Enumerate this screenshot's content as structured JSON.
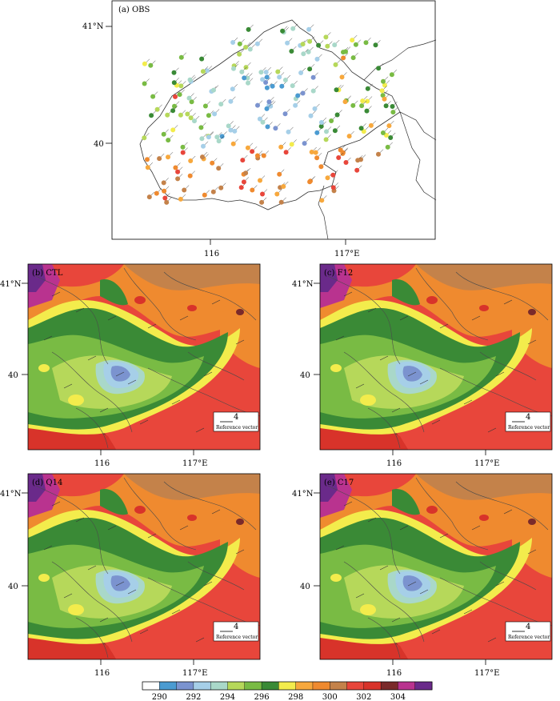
{
  "colors": {
    "bins": [
      "#ffffff",
      "#4b9bd1",
      "#7b93cf",
      "#a6cfe8",
      "#a9d8c9",
      "#b6d85a",
      "#79bb44",
      "#3a8a36",
      "#f3ec4c",
      "#f7a83d",
      "#ef8a2f",
      "#c4824a",
      "#e8463b",
      "#d8332a",
      "#7a2a2a",
      "#b9338f",
      "#6a2a8a"
    ]
  },
  "colorbar": {
    "labels": [
      "290",
      "292",
      "294",
      "296",
      "298",
      "300",
      "302",
      "304"
    ]
  },
  "panels": {
    "obs": {
      "label": "(a) OBS",
      "lat_top": "41°N",
      "lat_mid": "40",
      "lon_left": "116",
      "lon_right": "117°E"
    },
    "ctl": {
      "label": "(b) CTL",
      "lat_top": "41°N",
      "lat_mid": "40",
      "lon_left": "116",
      "lon_right": "117°E",
      "ref_value": "4",
      "ref_label": "Reference vector"
    },
    "f12": {
      "label": "(c) F12",
      "lat_top": "41°N",
      "lat_mid": "40",
      "lon_left": "116",
      "lon_right": "117°E",
      "ref_value": "4",
      "ref_label": "Reference vector"
    },
    "q14": {
      "label": "(d) Q14",
      "lat_top": "41°N",
      "lat_mid": "40",
      "lon_left": "116",
      "lon_right": "117°E",
      "ref_value": "4",
      "ref_label": "Reference vector"
    },
    "c17": {
      "label": "(e) C17",
      "lat_top": "41°N",
      "lat_mid": "40",
      "lon_left": "116",
      "lon_right": "117°E",
      "ref_value": "4",
      "ref_label": "Reference vector"
    }
  }
}
